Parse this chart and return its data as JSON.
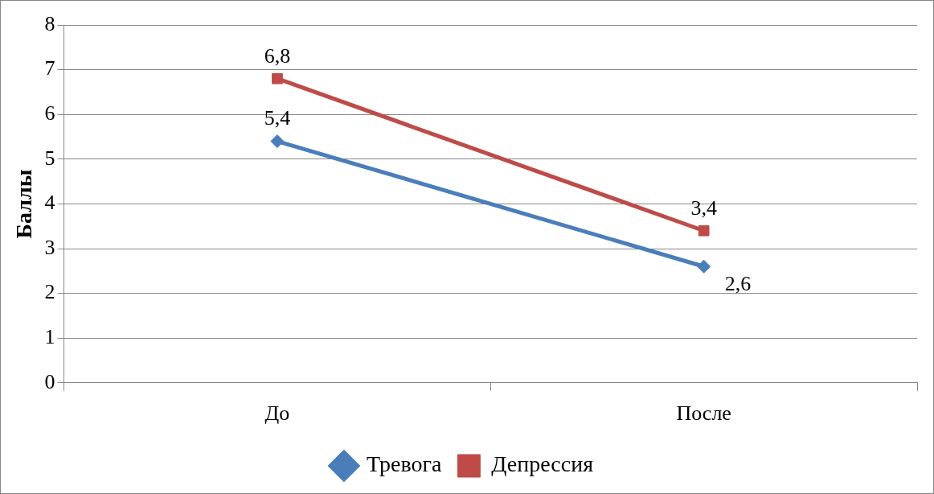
{
  "chart_data": {
    "type": "line",
    "ylabel": "Баллы",
    "categories": [
      "До",
      "После"
    ],
    "series": [
      {
        "name": "Тревога",
        "color": "#4a7ebb",
        "marker": "diamond",
        "values": [
          5.4,
          2.6
        ],
        "value_labels": [
          "5,4",
          "2,6"
        ]
      },
      {
        "name": "Депрессия",
        "color": "#be4b48",
        "marker": "square",
        "values": [
          6.8,
          3.4
        ],
        "value_labels": [
          "6,8",
          "3,4"
        ]
      }
    ],
    "ylim": [
      0,
      8
    ],
    "yticks": [
      0,
      1,
      2,
      3,
      4,
      5,
      6,
      7,
      8
    ],
    "grid": "y",
    "legend": "bottom"
  }
}
